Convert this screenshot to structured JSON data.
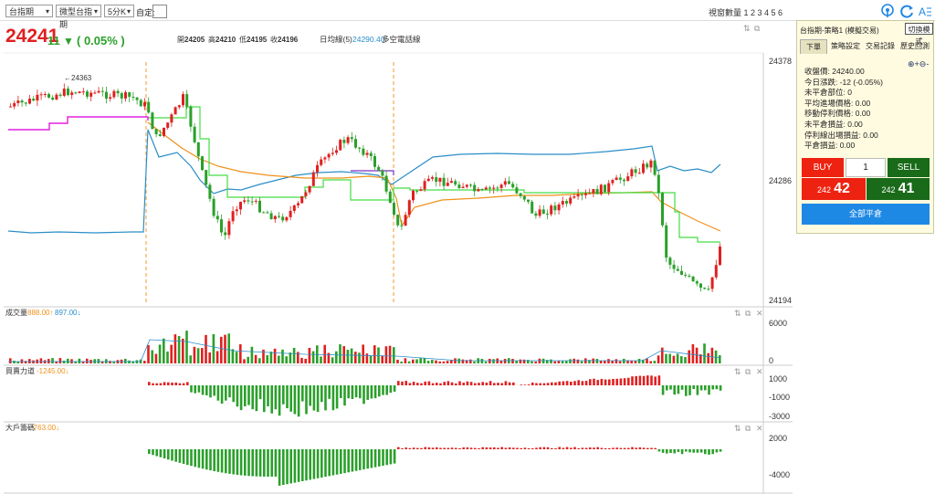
{
  "toolbar": {
    "product": "台指期",
    "contract": "微型台指期",
    "interval": "5分K",
    "custom_label": "自定:",
    "window_count_label": "視窗數量 1 2 3 4 5 6"
  },
  "quote": {
    "last": "24241",
    "change": "11",
    "change_arrow": "▼",
    "change_pct": "( 0.05% )",
    "open_label": "開",
    "open": "24205",
    "high_label": "高",
    "high": "24210",
    "low_label": "低",
    "low": "24195",
    "close_label": "收",
    "close": "24196",
    "ma_label": "日均線(5)",
    "ma_value": "24290.40",
    "indicator_label": "多空電話線"
  },
  "price_axis": [
    "24378",
    "24286",
    "24194"
  ],
  "annotation": "←24363",
  "volume": {
    "title": "成交量",
    "v1": "888.00↑",
    "v2": "897.00↓",
    "axis": [
      "6000",
      "0"
    ]
  },
  "force": {
    "title": "買賣力道",
    "value": "-1245.00↓",
    "axis": [
      "1000",
      "-1000",
      "-3000"
    ]
  },
  "big_players": {
    "title": "大戶籌碼",
    "value": "-763.00↓",
    "axis": [
      "2000",
      "-4000"
    ]
  },
  "panel": {
    "title": "台指期-策略1 (模擬交易)",
    "switch_mode": "切換模式",
    "tabs": [
      "下單",
      "策略設定",
      "交易記錄",
      "歷史回測"
    ],
    "info": [
      "收盤價: 24240.00",
      "今日漲跌: -12 (-0.05%)",
      "未平倉部位: 0",
      "平均進場價格: 0.00",
      "移動停利價格: 0.00",
      "未平倉損益: 0.00",
      "停利線出場損益: 0.00",
      "平倉損益: 0.00"
    ],
    "buy_label": "BUY",
    "sell_label": "SELL",
    "qty": "1",
    "buy_price_prefix": "242",
    "buy_price_main": "42",
    "sell_price_prefix": "242",
    "sell_price_main": "41",
    "close_all": "全部平倉"
  },
  "colors": {
    "up": "#e02020",
    "down": "#2aa02a",
    "ma_orange": "#f0901a",
    "ma_blue": "#2a8ec8",
    "stop_green": "#44dd44",
    "magenta": "#e020e0",
    "purple": "#7a30c0"
  }
}
